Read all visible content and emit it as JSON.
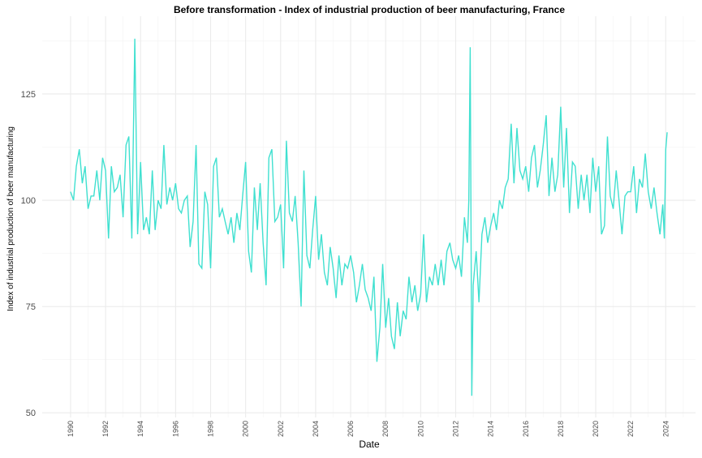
{
  "chart_data": {
    "type": "line",
    "title": "Before transformation - Index of industrial production of beer manufacturing, France",
    "x_label": "Date",
    "y_label": "Index of industrial production of beer manufacturing",
    "x": [
      1990,
      1990.17,
      1990.33,
      1990.5,
      1990.67,
      1990.83,
      1991,
      1991.17,
      1991.33,
      1991.5,
      1991.67,
      1991.83,
      1992,
      1992.17,
      1992.33,
      1992.5,
      1992.67,
      1992.83,
      1993,
      1993.17,
      1993.33,
      1993.5,
      1993.67,
      1993.83,
      1994,
      1994.17,
      1994.33,
      1994.5,
      1994.67,
      1994.83,
      1995,
      1995.17,
      1995.33,
      1995.5,
      1995.67,
      1995.83,
      1996,
      1996.17,
      1996.33,
      1996.5,
      1996.67,
      1996.83,
      1997,
      1997.17,
      1997.33,
      1997.5,
      1997.67,
      1997.83,
      1998,
      1998.17,
      1998.33,
      1998.5,
      1998.67,
      1998.83,
      1999,
      1999.17,
      1999.33,
      1999.5,
      1999.67,
      1999.83,
      2000,
      2000.17,
      2000.33,
      2000.5,
      2000.67,
      2000.83,
      2001,
      2001.17,
      2001.33,
      2001.5,
      2001.67,
      2001.83,
      2002,
      2002.17,
      2002.33,
      2002.5,
      2002.67,
      2002.83,
      2003,
      2003.17,
      2003.33,
      2003.5,
      2003.67,
      2003.83,
      2004,
      2004.17,
      2004.33,
      2004.5,
      2004.67,
      2004.83,
      2005,
      2005.17,
      2005.33,
      2005.5,
      2005.67,
      2005.83,
      2006,
      2006.17,
      2006.33,
      2006.5,
      2006.67,
      2006.83,
      2007,
      2007.17,
      2007.33,
      2007.5,
      2007.67,
      2007.83,
      2008,
      2008.17,
      2008.33,
      2008.5,
      2008.67,
      2008.83,
      2009,
      2009.17,
      2009.33,
      2009.5,
      2009.67,
      2009.83,
      2010,
      2010.17,
      2010.33,
      2010.5,
      2010.67,
      2010.83,
      2011,
      2011.17,
      2011.33,
      2011.5,
      2011.67,
      2011.83,
      2012,
      2012.17,
      2012.33,
      2012.5,
      2012.67,
      2012.75,
      2012.83,
      2012.92,
      2013,
      2013.17,
      2013.33,
      2013.5,
      2013.67,
      2013.83,
      2014,
      2014.17,
      2014.33,
      2014.5,
      2014.67,
      2014.83,
      2015,
      2015.17,
      2015.33,
      2015.5,
      2015.67,
      2015.83,
      2016,
      2016.17,
      2016.33,
      2016.5,
      2016.67,
      2016.83,
      2017,
      2017.17,
      2017.33,
      2017.5,
      2017.67,
      2017.83,
      2018,
      2018.17,
      2018.33,
      2018.5,
      2018.67,
      2018.83,
      2019,
      2019.17,
      2019.33,
      2019.5,
      2019.67,
      2019.83,
      2020,
      2020.17,
      2020.33,
      2020.5,
      2020.67,
      2020.83,
      2021,
      2021.17,
      2021.33,
      2021.5,
      2021.67,
      2021.83,
      2022,
      2022.17,
      2022.33,
      2022.5,
      2022.67,
      2022.83,
      2023,
      2023.17,
      2023.33,
      2023.5,
      2023.67,
      2023.83,
      2023.92,
      2024,
      2024.08
    ],
    "series": [
      {
        "color": "#40e0d0",
        "values": [
          102,
          100,
          108,
          112,
          104,
          108,
          98,
          101,
          101,
          107,
          100,
          110,
          107,
          91,
          108,
          102,
          103,
          106,
          96,
          113,
          115,
          91,
          138,
          92,
          109,
          93,
          96,
          92,
          107,
          93,
          100,
          98,
          113,
          99,
          103,
          100,
          104,
          98,
          97,
          100,
          101,
          89,
          95,
          113,
          85,
          84,
          102,
          99,
          84,
          108,
          110,
          96,
          98,
          95,
          92,
          96,
          90,
          97,
          93,
          101,
          109,
          88,
          83,
          103,
          93,
          104,
          90,
          80,
          110,
          112,
          95,
          96,
          99,
          84,
          114,
          97,
          95,
          101,
          90,
          75,
          107,
          87,
          84,
          93,
          101,
          86,
          92,
          83,
          80,
          89,
          84,
          77,
          87,
          80,
          85,
          84,
          87,
          83,
          76,
          80,
          85,
          79,
          77,
          74,
          82,
          62,
          70,
          85,
          70,
          77,
          68,
          65,
          76,
          68,
          74,
          72,
          82,
          76,
          80,
          74,
          78,
          92,
          76,
          82,
          80,
          85,
          80,
          86,
          80,
          88,
          90,
          86,
          84,
          87,
          82,
          96,
          90,
          100,
          136,
          54,
          80,
          88,
          76,
          92,
          96,
          90,
          94,
          97,
          93,
          100,
          98,
          103,
          105,
          118,
          104,
          117,
          107,
          105,
          108,
          102,
          110,
          113,
          103,
          107,
          113,
          120,
          101,
          110,
          102,
          106,
          122,
          103,
          117,
          97,
          109,
          108,
          98,
          106,
          100,
          106,
          97,
          110,
          102,
          108,
          92,
          94,
          115,
          101,
          98,
          107,
          100,
          92,
          101,
          102,
          102,
          108,
          97,
          105,
          103,
          111,
          102,
          98,
          103,
          97,
          92,
          99,
          91,
          112,
          116
        ]
      }
    ],
    "xlim": [
      1988.38,
      2025.7
    ],
    "ylim": [
      48.9,
      143.3
    ],
    "xticks": [
      1990,
      1992,
      1994,
      1996,
      1998,
      2000,
      2002,
      2004,
      2006,
      2008,
      2010,
      2012,
      2014,
      2016,
      2018,
      2020,
      2022,
      2024
    ],
    "yticks": [
      50,
      75,
      100,
      125
    ],
    "grid": true
  }
}
